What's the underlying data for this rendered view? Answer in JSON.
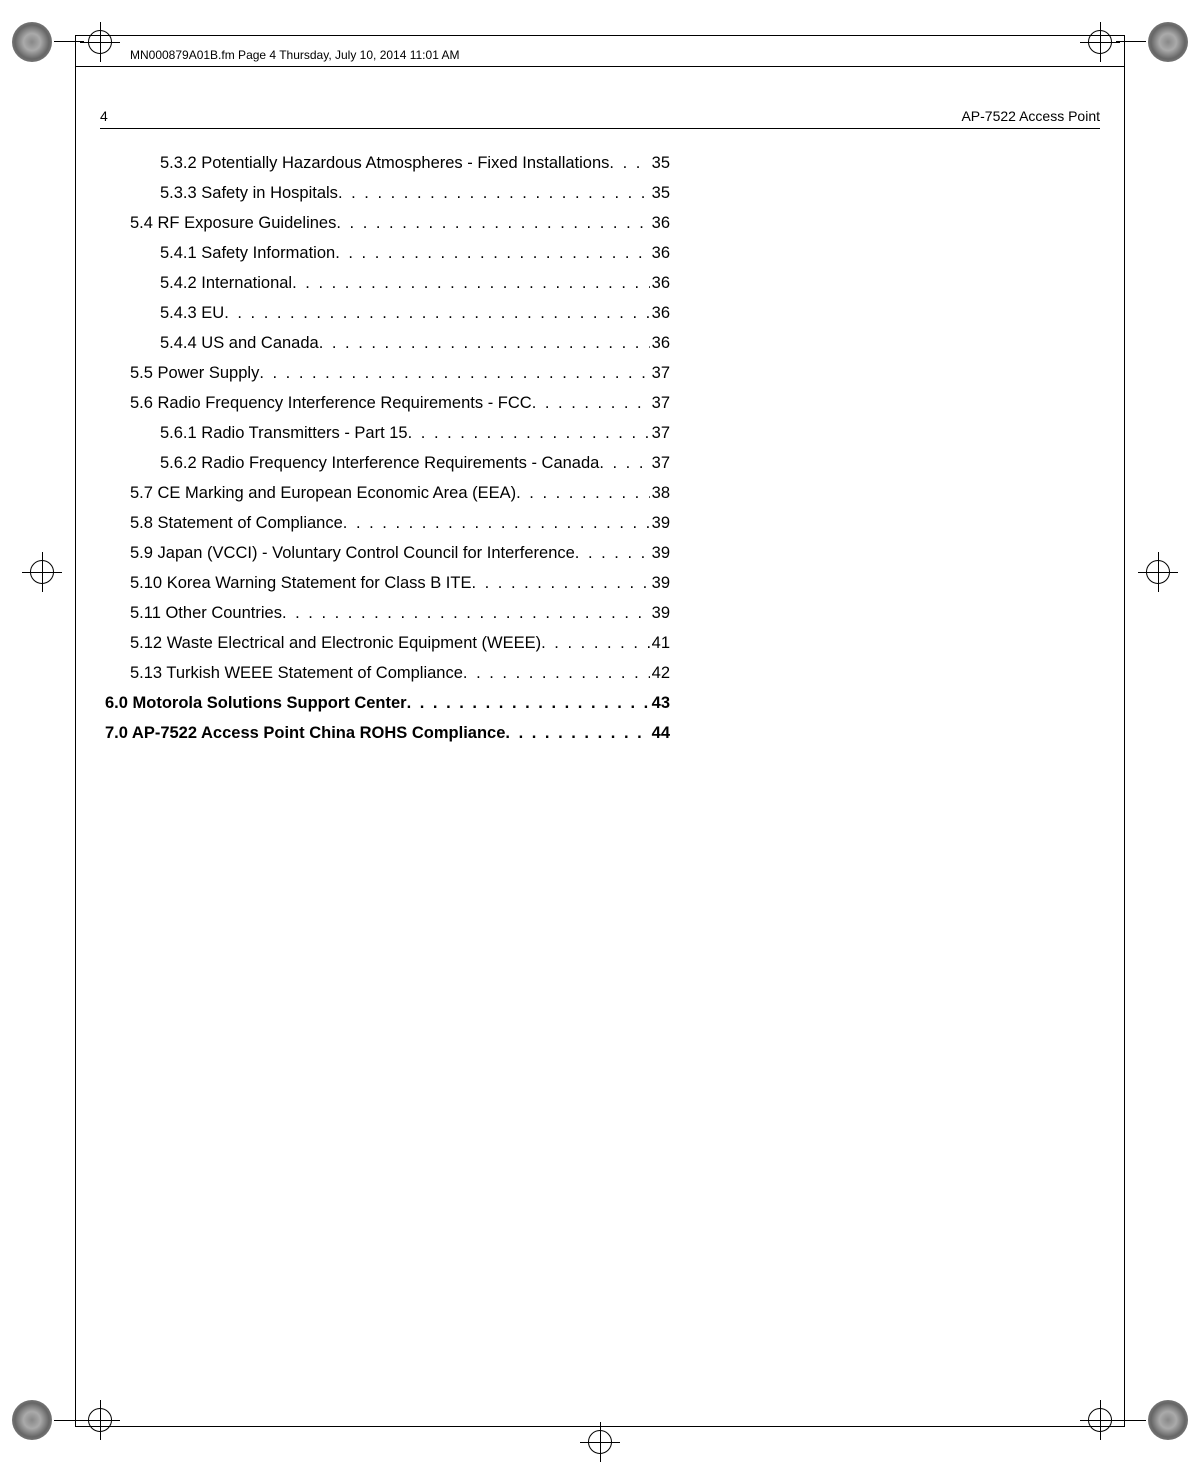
{
  "meta": {
    "filename_line": "MN000879A01B.fm  Page 4  Thursday, July 10, 2014  11:01 AM"
  },
  "header": {
    "page_number": "4",
    "doc_title": "AP-7522 Access Point"
  },
  "toc": [
    {
      "level": "l2",
      "title": "5.3.2 Potentially Hazardous Atmospheres - Fixed Installations",
      "page": "35"
    },
    {
      "level": "l2",
      "title": "5.3.3 Safety in Hospitals ",
      "page": "35"
    },
    {
      "level": "l1",
      "title": "5.4 RF Exposure Guidelines ",
      "page": "36"
    },
    {
      "level": "l2",
      "title": "5.4.1 Safety Information",
      "page": "36"
    },
    {
      "level": "l2",
      "title": "5.4.2 International ",
      "page": "36"
    },
    {
      "level": "l2",
      "title": "5.4.3 EU",
      "page": "36"
    },
    {
      "level": "l2",
      "title": "5.4.4 US and Canada ",
      "page": "36"
    },
    {
      "level": "l1",
      "title": "5.5 Power Supply ",
      "page": "37"
    },
    {
      "level": "l1",
      "title": "5.6 Radio Frequency Interference Requirements - FCC ",
      "page": "37"
    },
    {
      "level": "l2",
      "title": "5.6.1 Radio Transmitters - Part 15 ",
      "page": "37"
    },
    {
      "level": "l2",
      "title": "5.6.2 Radio Frequency Interference Requirements - Canada",
      "page": "37"
    },
    {
      "level": "l1",
      "title": "5.7 CE Marking and European Economic Area (EEA)",
      "page": "38"
    },
    {
      "level": "l1",
      "title": "5.8 Statement of Compliance",
      "page": "39"
    },
    {
      "level": "l1",
      "title": "5.9 Japan (VCCI) - Voluntary Control Council for Interference ",
      "page": "39"
    },
    {
      "level": "l1",
      "title": "5.10 Korea Warning Statement for Class B ITE",
      "page": "39"
    },
    {
      "level": "l1",
      "title": "5.11 Other Countries",
      "page": "39"
    },
    {
      "level": "l1",
      "title": "5.12 Waste Electrical and Electronic Equipment (WEEE) ",
      "page": "41"
    },
    {
      "level": "l1",
      "title": "5.13 Turkish WEEE Statement of Compliance",
      "page": "42"
    },
    {
      "level": "l0",
      "title": "6.0 Motorola Solutions Support Center ",
      "page": "43"
    },
    {
      "level": "l0",
      "title": "7.0 AP-7522 Access Point China ROHS Compliance ",
      "page": "44"
    }
  ],
  "colors": {
    "text": "#000000",
    "background": "#ffffff"
  }
}
